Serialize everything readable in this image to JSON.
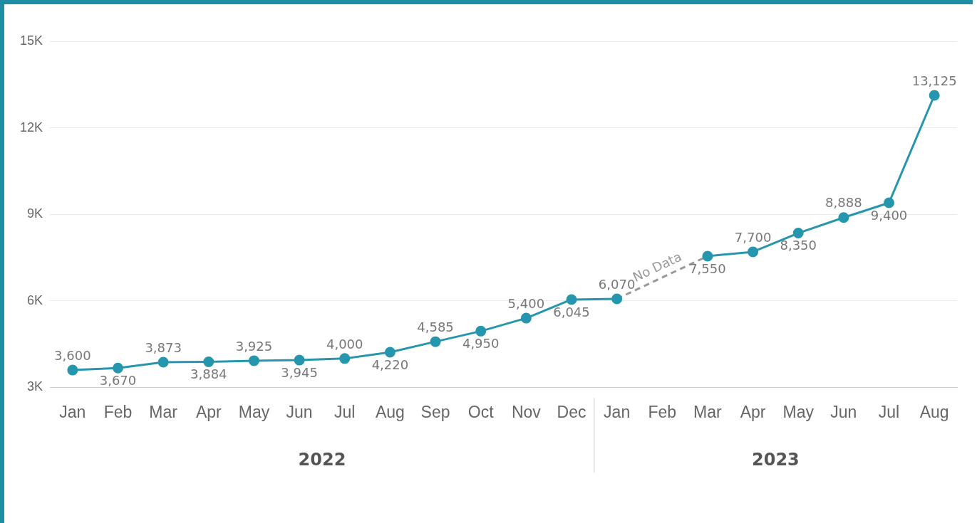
{
  "chart_data": {
    "type": "line",
    "categories": [
      "Jan",
      "Feb",
      "Mar",
      "Apr",
      "May",
      "Jun",
      "Jul",
      "Aug",
      "Sep",
      "Oct",
      "Nov",
      "Dec",
      "Jan",
      "Feb",
      "Mar",
      "Apr",
      "May",
      "Jun",
      "Jul",
      "Aug"
    ],
    "series": [
      {
        "color": "#2596ad",
        "values": [
          3600,
          3670,
          3873,
          3884,
          3925,
          3945,
          4000,
          4220,
          4585,
          4950,
          5400,
          6045,
          6070,
          null,
          7550,
          7700,
          8350,
          8888,
          9400,
          13125
        ],
        "value_labels": [
          "3,600",
          "3,670",
          "3,873",
          "3,884",
          "3,925",
          "3,945",
          "4,000",
          "4,220",
          "4,585",
          "4,950",
          "5,400",
          "6,045",
          "6,070",
          null,
          "7,550",
          "7,700",
          "8,350",
          "8,888",
          "9,400",
          "13,125"
        ]
      }
    ],
    "ylim": [
      3000,
      15000
    ],
    "yticks": [
      {
        "value": 3000,
        "label": "3K"
      },
      {
        "value": 6000,
        "label": "6K"
      },
      {
        "value": 9000,
        "label": "9K"
      },
      {
        "value": 12000,
        "label": "12K"
      },
      {
        "value": 15000,
        "label": "15K"
      }
    ],
    "grid": "y",
    "legend": false,
    "marker": "circle",
    "line_style": "solid",
    "annotations": [
      "No Data",
      "2022",
      "2023"
    ]
  }
}
